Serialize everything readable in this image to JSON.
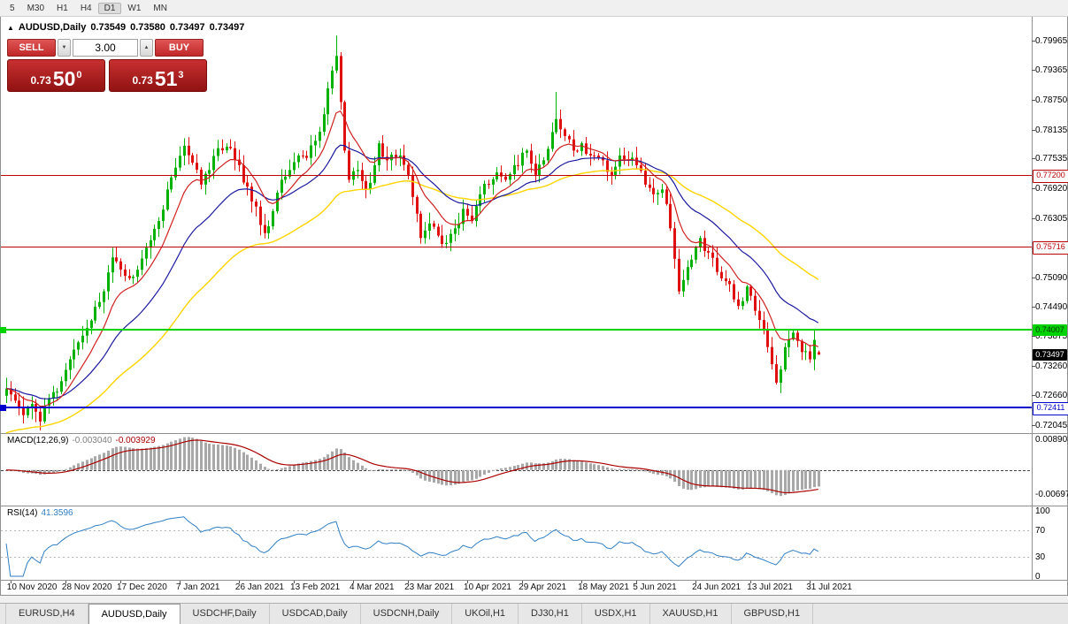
{
  "toolbar": {
    "timeframes": [
      "5",
      "M30",
      "H1",
      "H4",
      "D1",
      "W1",
      "MN"
    ],
    "active": "D1"
  },
  "chart": {
    "title": {
      "symbol": "AUDUSD,Daily",
      "open": "0.73549",
      "high": "0.73580",
      "low": "0.73497",
      "close": "0.73497"
    },
    "one_click": {
      "sell_label": "SELL",
      "buy_label": "BUY",
      "volume": "3.00",
      "bid": {
        "prefix": "0.73",
        "big": "50",
        "sup": "0"
      },
      "ask": {
        "prefix": "0.73",
        "big": "51",
        "sup": "3"
      }
    }
  },
  "price_axis_labels": [
    "0.79965",
    "0.79365",
    "0.78750",
    "0.78135",
    "0.77535",
    "0.76920",
    "0.76305",
    "0.75690",
    "0.75090",
    "0.74490",
    "0.73875",
    "0.73260",
    "0.72660",
    "0.72045"
  ],
  "hlines": [
    {
      "price": "0.77200",
      "color": "#b80000",
      "width": 1,
      "tag_style": "outline",
      "tag_text": "#b80000"
    },
    {
      "price": "0.75716",
      "color": "#b80000",
      "width": 1,
      "tag_style": "outline",
      "tag_text": "#b80000"
    },
    {
      "price": "0.74007",
      "color": "#00d300",
      "width": 2,
      "tag_style": "fill",
      "tag_text": "#003300"
    },
    {
      "price": "0.72411",
      "color": "#0000cc",
      "width": 2,
      "tag_style": "outline",
      "tag_text": "#0000cc"
    }
  ],
  "current_price_tag": {
    "value": "0.73497",
    "bg": "#000000",
    "text": "#ffffff"
  },
  "macd_panel": {
    "title": "MACD(12,26,9)",
    "histogram_value": "-0.003040",
    "signal_value": "-0.003929",
    "axis_top": "0.008903",
    "axis_bottom": "-0.00697"
  },
  "rsi_panel": {
    "title": "RSI(14)",
    "value": "41.3596",
    "axis": [
      "100",
      "70",
      "30",
      "0"
    ],
    "levels": [
      70,
      30
    ]
  },
  "tabs": {
    "items": [
      "EURUSD,H4",
      "AUDUSD,Daily",
      "USDCHF,Daily",
      "USDCAD,Daily",
      "USDCNH,Daily",
      "UKOil,H1",
      "DJ30,H1",
      "USDX,H1",
      "XAUUSD,H1",
      "GBPUSD,H1"
    ],
    "active": "AUDUSD,Daily"
  },
  "colors": {
    "candle_up": "#00b200",
    "candle_down": "#e01010",
    "ma_fast": "#d02020",
    "ma_medium": "#1a1aa0",
    "ma_slow": "#ffd400",
    "macd_histogram": "#a8a8a8",
    "macd_signal": "#aa0000",
    "rsi_line": "#2f7ec4",
    "pane_border": "#909090"
  },
  "chart_data": {
    "type": "candlestick",
    "symbol": "AUDUSD",
    "timeframe": "Daily",
    "bars_total": 193,
    "visible_range": {
      "price_max": 0.80311,
      "price_min": 0.71881,
      "first_date": "10 Nov 2020",
      "last_date": "31 Jul 2021"
    },
    "price_anchors_bar_close": [
      [
        0,
        0.728
      ],
      [
        2,
        0.7255
      ],
      [
        4,
        0.7225
      ],
      [
        6,
        0.7248
      ],
      [
        8,
        0.7212
      ],
      [
        10,
        0.726
      ],
      [
        13,
        0.7295
      ],
      [
        15,
        0.734
      ],
      [
        17,
        0.7375
      ],
      [
        20,
        0.742
      ],
      [
        23,
        0.748
      ],
      [
        25,
        0.755
      ],
      [
        27,
        0.7525
      ],
      [
        30,
        0.751
      ],
      [
        33,
        0.757
      ],
      [
        36,
        0.7625
      ],
      [
        38,
        0.769
      ],
      [
        40,
        0.7735
      ],
      [
        42,
        0.778
      ],
      [
        44,
        0.7745
      ],
      [
        46,
        0.77
      ],
      [
        48,
        0.773
      ],
      [
        50,
        0.7775
      ],
      [
        53,
        0.7775
      ],
      [
        55,
        0.774
      ],
      [
        58,
        0.7665
      ],
      [
        61,
        0.76
      ],
      [
        63,
        0.7645
      ],
      [
        65,
        0.771
      ],
      [
        67,
        0.773
      ],
      [
        69,
        0.776
      ],
      [
        71,
        0.7755
      ],
      [
        73,
        0.779
      ],
      [
        75,
        0.7845
      ],
      [
        77,
        0.7935
      ],
      [
        78,
        0.7965
      ],
      [
        79,
        0.787
      ],
      [
        80,
        0.777
      ],
      [
        81,
        0.771
      ],
      [
        83,
        0.773
      ],
      [
        85,
        0.769
      ],
      [
        87,
        0.774
      ],
      [
        88,
        0.7785
      ],
      [
        90,
        0.775
      ],
      [
        93,
        0.776
      ],
      [
        95,
        0.772
      ],
      [
        97,
        0.764
      ],
      [
        98,
        0.759
      ],
      [
        100,
        0.762
      ],
      [
        102,
        0.7595
      ],
      [
        104,
        0.758
      ],
      [
        106,
        0.761
      ],
      [
        108,
        0.765
      ],
      [
        110,
        0.7625
      ],
      [
        112,
        0.768
      ],
      [
        114,
        0.77
      ],
      [
        116,
        0.7725
      ],
      [
        118,
        0.771
      ],
      [
        120,
        0.774
      ],
      [
        123,
        0.777
      ],
      [
        125,
        0.772
      ],
      [
        127,
        0.775
      ],
      [
        130,
        0.7835
      ],
      [
        132,
        0.78
      ],
      [
        134,
        0.777
      ],
      [
        136,
        0.7785
      ],
      [
        138,
        0.776
      ],
      [
        141,
        0.775
      ],
      [
        143,
        0.772
      ],
      [
        145,
        0.776
      ],
      [
        147,
        0.775
      ],
      [
        149,
        0.774
      ],
      [
        151,
        0.77
      ],
      [
        153,
        0.768
      ],
      [
        155,
        0.769
      ],
      [
        157,
        0.761
      ],
      [
        159,
        0.748
      ],
      [
        161,
        0.753
      ],
      [
        164,
        0.759
      ],
      [
        166,
        0.756
      ],
      [
        168,
        0.752
      ],
      [
        171,
        0.7495
      ],
      [
        173,
        0.745
      ],
      [
        175,
        0.749
      ],
      [
        177,
        0.744
      ],
      [
        179,
        0.74
      ],
      [
        181,
        0.733
      ],
      [
        182,
        0.7292
      ],
      [
        184,
        0.7365
      ],
      [
        186,
        0.7395
      ],
      [
        188,
        0.7355
      ],
      [
        190,
        0.734
      ],
      [
        191,
        0.738
      ],
      [
        192,
        0.73497
      ]
    ],
    "special_bars": {
      "high_spike_bar": 78,
      "high_spike_value": 0.8007,
      "may_high_bar": 130,
      "may_high_value": 0.7891,
      "jul_low_bar": 182,
      "jul_low_value": 0.7288
    },
    "last_candle": {
      "open": 0.73549,
      "high": 0.7358,
      "low": 0.73497,
      "close": 0.73497
    },
    "date_ticks": [
      {
        "label": "10 Nov 2020",
        "bar": 1
      },
      {
        "label": "28 Nov 2020",
        "bar": 14
      },
      {
        "label": "17 Dec 2020",
        "bar": 27
      },
      {
        "label": "7 Jan 2021",
        "bar": 41
      },
      {
        "label": "26 Jan 2021",
        "bar": 55
      },
      {
        "label": "13 Feb 2021",
        "bar": 68
      },
      {
        "label": "4 Mar 2021",
        "bar": 82
      },
      {
        "label": "23 Mar 2021",
        "bar": 95
      },
      {
        "label": "10 Apr 2021",
        "bar": 109
      },
      {
        "label": "29 Apr 2021",
        "bar": 122
      },
      {
        "label": "18 May 2021",
        "bar": 136
      },
      {
        "label": "5 Jun 2021",
        "bar": 149
      },
      {
        "label": "24 Jun 2021",
        "bar": 163
      },
      {
        "label": "13 Jul 2021",
        "bar": 176
      },
      {
        "label": "31 Jul 2021",
        "bar": 190
      }
    ],
    "indicators": {
      "moving_averages": [
        {
          "period": 10
        },
        {
          "period": 25
        },
        {
          "period": 55
        }
      ],
      "macd": {
        "params": [
          12,
          26,
          9
        ],
        "current_histogram": -0.00304,
        "current_signal": -0.003929,
        "axis_max": 0.008903,
        "axis_min": -0.00697
      },
      "rsi": {
        "period": 14,
        "current": 41.3596,
        "levels": [
          70,
          30
        ]
      }
    },
    "horizontal_levels": [
      0.772,
      0.75716,
      0.74007,
      0.72411
    ],
    "current_price": 0.73497
  }
}
